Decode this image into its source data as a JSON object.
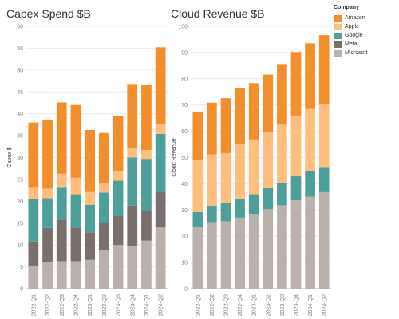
{
  "chart_data": [
    {
      "type": "bar",
      "stacked": true,
      "title": "Capex Spend $B",
      "ylabel": "Capex $",
      "xlabel": "",
      "ylim": [
        0,
        60
      ],
      "yticks": [
        0,
        5,
        10,
        15,
        20,
        25,
        30,
        35,
        40,
        45,
        50,
        55,
        60
      ],
      "grid": true,
      "categories": [
        "2022-Q1",
        "2022-Q2",
        "2022-Q3",
        "2022-Q4",
        "2023-Q1",
        "2023-Q2",
        "2023-Q3",
        "2023-Q4",
        "2024-Q1",
        "2024-Q2"
      ],
      "series": [
        {
          "name": "Microsoft",
          "color": "#bab0ac",
          "values": [
            5.3,
            6.2,
            6.3,
            6.3,
            6.6,
            8.9,
            10.0,
            9.7,
            11.0,
            14.0
          ]
        },
        {
          "name": "Meta",
          "color": "#79706e",
          "values": [
            5.5,
            7.7,
            9.5,
            7.7,
            6.3,
            6.2,
            6.6,
            9.3,
            6.7,
            8.2
          ]
        },
        {
          "name": "Google",
          "color": "#4e9f9a",
          "values": [
            9.8,
            6.8,
            7.3,
            7.6,
            6.3,
            6.9,
            8.1,
            11.0,
            12.0,
            13.2
          ]
        },
        {
          "name": "Apple",
          "color": "#ffbe7d",
          "values": [
            2.5,
            2.2,
            3.2,
            3.8,
            2.9,
            2.1,
            2.2,
            2.2,
            2.0,
            2.2
          ]
        },
        {
          "name": "Amazon",
          "color": "#f28e2b",
          "values": [
            14.9,
            15.7,
            16.3,
            16.6,
            14.2,
            11.5,
            12.5,
            14.6,
            14.9,
            17.6
          ]
        }
      ]
    },
    {
      "type": "bar",
      "stacked": true,
      "title": "Cloud Revenue $B",
      "ylabel": "Cloud Revenue",
      "xlabel": "",
      "ylim": [
        0,
        100
      ],
      "yticks": [
        0,
        10,
        20,
        30,
        40,
        50,
        60,
        70,
        80,
        90,
        100
      ],
      "grid": true,
      "categories": [
        "2022-Q1",
        "2022-Q2",
        "2022-Q3",
        "2022-Q4",
        "2023-Q1",
        "2023-Q2",
        "2023-Q3",
        "2023-Q4",
        "2024-Q1",
        "2024-Q2"
      ],
      "series": [
        {
          "name": "Microsoft",
          "color": "#bab0ac",
          "values": [
            23.4,
            25.4,
            25.7,
            27.1,
            28.5,
            30.3,
            31.8,
            33.7,
            35.1,
            36.8
          ]
        },
        {
          "name": "Meta",
          "color": "#79706e",
          "values": [
            0,
            0,
            0,
            0,
            0,
            0,
            0,
            0,
            0,
            0
          ]
        },
        {
          "name": "Google",
          "color": "#4e9f9a",
          "values": [
            5.8,
            6.2,
            6.9,
            7.3,
            7.5,
            8.0,
            8.4,
            9.2,
            9.6,
            9.3
          ]
        },
        {
          "name": "Apple",
          "color": "#ffbe7d",
          "values": [
            19.8,
            19.6,
            19.1,
            20.8,
            20.9,
            21.2,
            22.3,
            23.1,
            23.8,
            24.2
          ]
        },
        {
          "name": "Amazon",
          "color": "#f28e2b",
          "values": [
            18.5,
            19.7,
            20.9,
            21.4,
            21.4,
            22.1,
            23.1,
            24.2,
            25.0,
            26.3
          ]
        }
      ]
    }
  ],
  "legend": {
    "title": "Company",
    "placement": "top-right",
    "items": [
      {
        "label": "Amazon",
        "color": "#f28e2b"
      },
      {
        "label": "Apple",
        "color": "#ffbe7d"
      },
      {
        "label": "Google",
        "color": "#4e9f9a"
      },
      {
        "label": "Meta",
        "color": "#79706e"
      },
      {
        "label": "Microsoft",
        "color": "#bab0ac"
      }
    ]
  }
}
